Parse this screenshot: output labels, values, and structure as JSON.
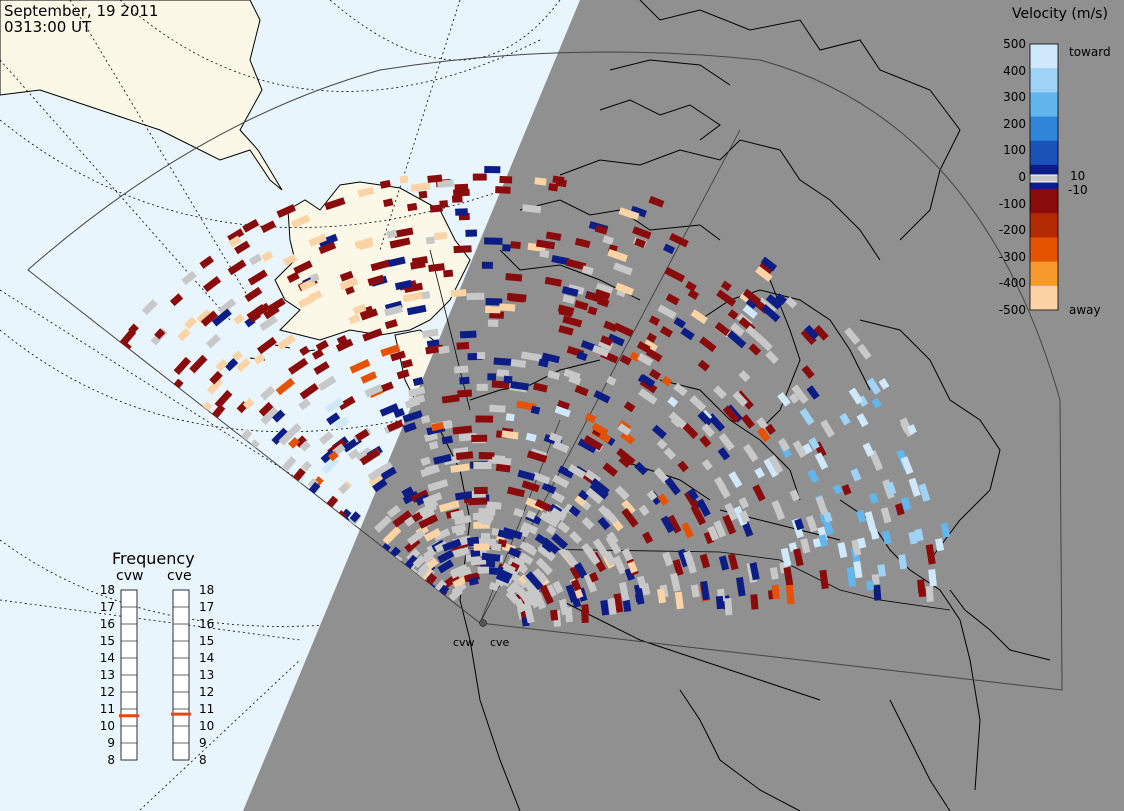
{
  "header": {
    "date": "September, 19 2011",
    "time": "0313:00 UT"
  },
  "velocity_scale": {
    "title": "Velocity (m/s)",
    "ticks": [
      "500",
      "400",
      "300",
      "200",
      "100",
      "0",
      "-100",
      "-200",
      "-300",
      "-400",
      "-500"
    ],
    "inner_labels": {
      "pos": "10",
      "neg": "-10"
    },
    "toward_label": "toward",
    "away_label": "away",
    "colors": [
      "#cfe8fb",
      "#9fd3f5",
      "#62b6ee",
      "#2f86d8",
      "#1a52b8",
      "#0c1e86",
      "#8a0b0b",
      "#b42a00",
      "#e55300",
      "#f79a2c",
      "#fcd3a4"
    ],
    "ground_scatter_color": "#c8c8c8"
  },
  "frequency": {
    "title": "Frequency",
    "radars": [
      {
        "name": "cvw",
        "value_mhz": 10.6,
        "marker_color": "#e2461b"
      },
      {
        "name": "cve",
        "value_mhz": 10.7,
        "marker_color": "#e2461b"
      }
    ],
    "ticks": [
      "8",
      "9",
      "10",
      "11",
      "12",
      "13",
      "14",
      "15",
      "16",
      "17",
      "18"
    ]
  },
  "map": {
    "sites": [
      {
        "name": "cvw"
      },
      {
        "name": "cve"
      }
    ],
    "colors": {
      "ocean": "#e8f5fd",
      "land": "#fbf8e8",
      "night": "#909090",
      "coast": "#000000"
    }
  }
}
